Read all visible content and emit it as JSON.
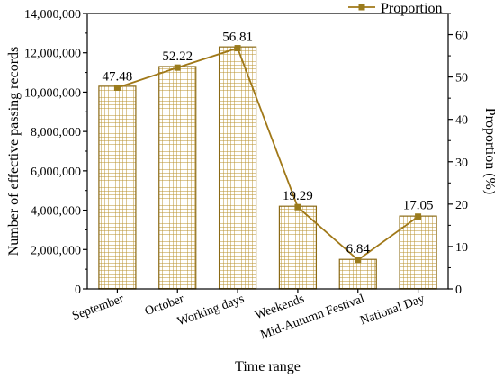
{
  "chart_data": {
    "type": "bar",
    "categories": [
      "September",
      "October",
      "Working days",
      "Weekends",
      "Mid-Autumn Festival",
      "National Day"
    ],
    "xlabel": "Time range",
    "ylabel_left": "Number of effective passing records",
    "ylabel_right": "Proportion (%)",
    "ylim_left": [
      0,
      14000000
    ],
    "ylim_right": [
      0,
      65
    ],
    "yticks_left": [
      "0",
      "2,000,000",
      "4,000,000",
      "6,000,000",
      "8,000,000",
      "10,000,000",
      "12,000,000",
      "14,000,000"
    ],
    "yticks_right": [
      "0",
      "10",
      "20",
      "30",
      "40",
      "50",
      "60"
    ],
    "grid": false,
    "legend_position": "top-right",
    "series": [
      {
        "type": "bar",
        "axis": "left",
        "values": [
          10300000,
          11300000,
          12300000,
          4200000,
          1500000,
          3700000
        ]
      },
      {
        "name": "Proportion",
        "type": "line",
        "axis": "right",
        "values": [
          47.48,
          52.22,
          56.81,
          19.29,
          6.84,
          17.05
        ],
        "labels": [
          "47.48",
          "52.22",
          "56.81",
          "19.29",
          "6.84",
          "17.05"
        ]
      }
    ],
    "colors": {
      "bar_fill": "#d4ad5a",
      "bar_edge": "#8b6914",
      "line": "#a07818",
      "marker": "#9a7b1c"
    }
  }
}
